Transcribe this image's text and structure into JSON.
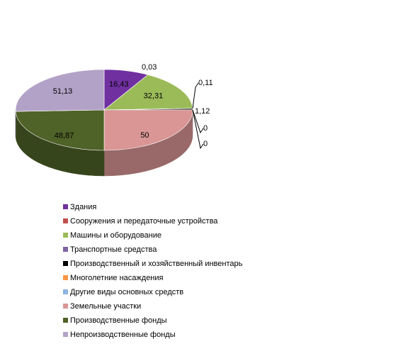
{
  "chart_data": {
    "type": "pie",
    "categories": [
      "Здания",
      "Сооружения и передаточные устройства",
      "Машины и оборудование",
      "Транспортные средства",
      "Производственный и хозяйственный инвентарь",
      "Многолетние насаждения",
      "Другие виды основных средств",
      "Земельные участки",
      "Производственные фонды",
      "Непроизводственные фонды"
    ],
    "values": [
      16.43,
      0.03,
      32.31,
      0.11,
      1.12,
      0,
      0,
      50,
      48.87,
      51.13
    ],
    "value_labels": [
      "16,43",
      "0,03",
      "32,31",
      "0,11",
      "1,12",
      "0",
      "0",
      "50",
      "48,87",
      "51,13"
    ],
    "colors": [
      "#7030a0",
      "#c0504d",
      "#9bbb59",
      "#8064a2",
      "#000000",
      "#f79646",
      "#8eb4e3",
      "#d99694",
      "#4f6228",
      "#b3a2c7"
    ]
  }
}
